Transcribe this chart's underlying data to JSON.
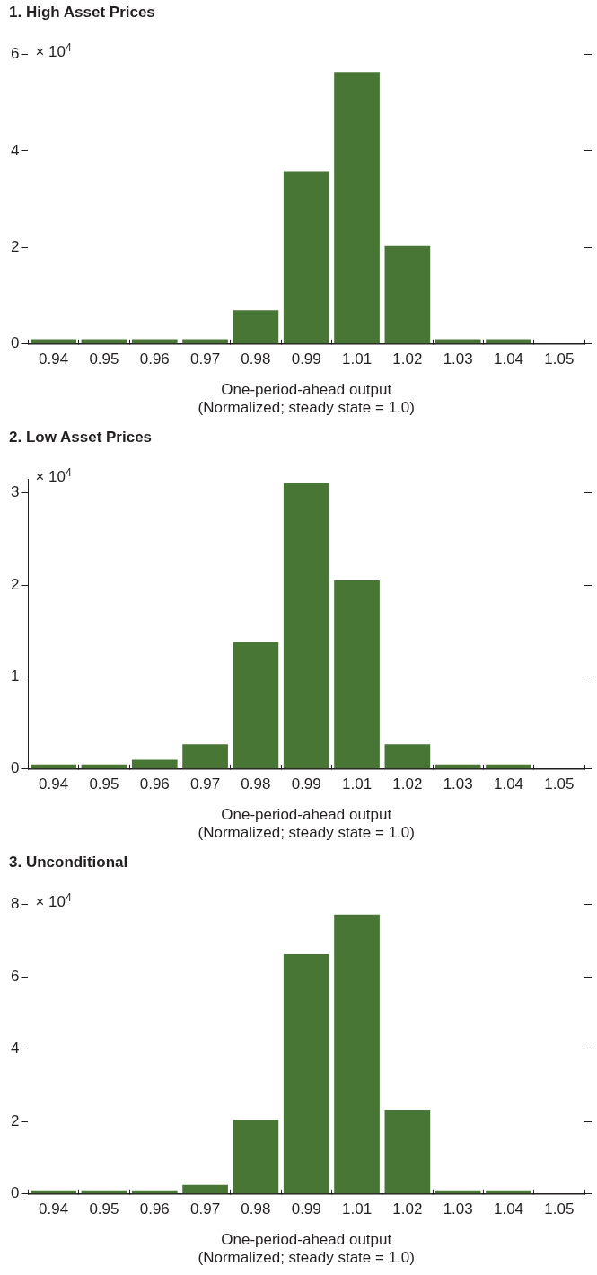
{
  "chart_data": [
    {
      "type": "bar",
      "title": "1. High Asset Prices",
      "xlabel": "One-period-ahead output\n(Normalized; steady state = 1.0)",
      "annotations": [
        "× 10$^{4}$"
      ],
      "categories": [
        "0.94",
        "0.95",
        "0.96",
        "0.97",
        "0.98",
        "0.99",
        "1.01",
        "1.02",
        "1.03",
        "1.04",
        "1.05"
      ],
      "values": [
        0.1,
        0.1,
        0.1,
        0.1,
        0.7,
        3.58,
        5.63,
        2.03,
        0.1,
        0.1,
        null
      ],
      "color": "#487634",
      "ylim": [
        0,
        6
      ],
      "yticks": [
        0,
        2,
        4,
        6
      ],
      "grid": false,
      "legend": false
    },
    {
      "type": "bar",
      "title": "2. Low Asset Prices",
      "xlabel": "One-period-ahead output\n(Normalized; steady state = 1.0)",
      "annotations": [
        "× 10$^{4}$"
      ],
      "categories": [
        "0.94",
        "0.95",
        "0.96",
        "0.97",
        "0.98",
        "0.99",
        "1.01",
        "1.02",
        "1.03",
        "1.04",
        "1.05"
      ],
      "values": [
        0.05,
        0.05,
        0.1,
        0.27,
        1.38,
        3.11,
        2.05,
        0.27,
        0.05,
        0.05,
        null
      ],
      "color": "#487634",
      "ylim": [
        0,
        3.15
      ],
      "yticks": [
        0,
        1,
        2,
        3
      ],
      "grid": false,
      "legend": false
    },
    {
      "type": "bar",
      "title": "3. Unconditional",
      "xlabel": "One-period-ahead output\n(Normalized; steady state = 1.0)",
      "annotations": [
        "× 10$^{4}$"
      ],
      "categories": [
        "0.94",
        "0.95",
        "0.96",
        "0.97",
        "0.98",
        "0.99",
        "1.01",
        "1.02",
        "1.03",
        "1.04",
        "1.05"
      ],
      "values": [
        0.1,
        0.1,
        0.1,
        0.25,
        2.04,
        6.62,
        7.72,
        2.33,
        0.1,
        0.1,
        null
      ],
      "color": "#487634",
      "ylim": [
        0,
        8
      ],
      "yticks": [
        0,
        2,
        4,
        6,
        8
      ],
      "grid": false,
      "legend": false
    }
  ]
}
